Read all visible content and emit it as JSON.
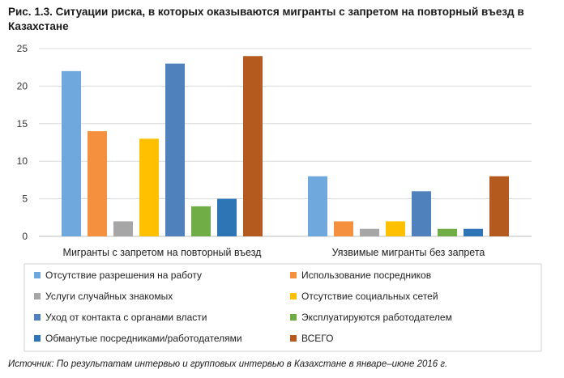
{
  "title": "Рис. 1.3. Ситуации риска, в которых оказываются мигранты с запретом на повторный въезд в Казахстане",
  "source": "Источник: По результатам интервью и групповых интервью в Казахстане в январе–июне 2016 г.",
  "chart_data": {
    "type": "bar",
    "categories": [
      "Мигранты с запретом на повторный въезд",
      "Уязвимые мигранты без запрета"
    ],
    "series": [
      {
        "name": "Отсутствие разрешения на работу",
        "color": "#6fa8dc",
        "values": [
          22,
          8
        ]
      },
      {
        "name": "Использование посредников",
        "color": "#f5913e",
        "values": [
          14,
          2
        ]
      },
      {
        "name": "Услуги случайных знакомых",
        "color": "#a6a6a6",
        "values": [
          2,
          1
        ]
      },
      {
        "name": "Отсутствие социальных сетей",
        "color": "#ffc000",
        "values": [
          13,
          2
        ]
      },
      {
        "name": "Уход от контакта с органами власти",
        "color": "#4f81bd",
        "values": [
          23,
          6
        ]
      },
      {
        "name": "Эксплуатируются работодателем",
        "color": "#70ad47",
        "values": [
          4,
          1
        ]
      },
      {
        "name": "Обманутые посредниками/работодателями",
        "color": "#2e75b6",
        "values": [
          5,
          1
        ]
      },
      {
        "name": "ВСЕГО",
        "color": "#b55a1e",
        "values": [
          24,
          8
        ]
      }
    ],
    "ylim": [
      0,
      25
    ],
    "yticks": [
      0,
      5,
      10,
      15,
      20,
      25
    ],
    "grid": true,
    "legend": "bottom"
  }
}
